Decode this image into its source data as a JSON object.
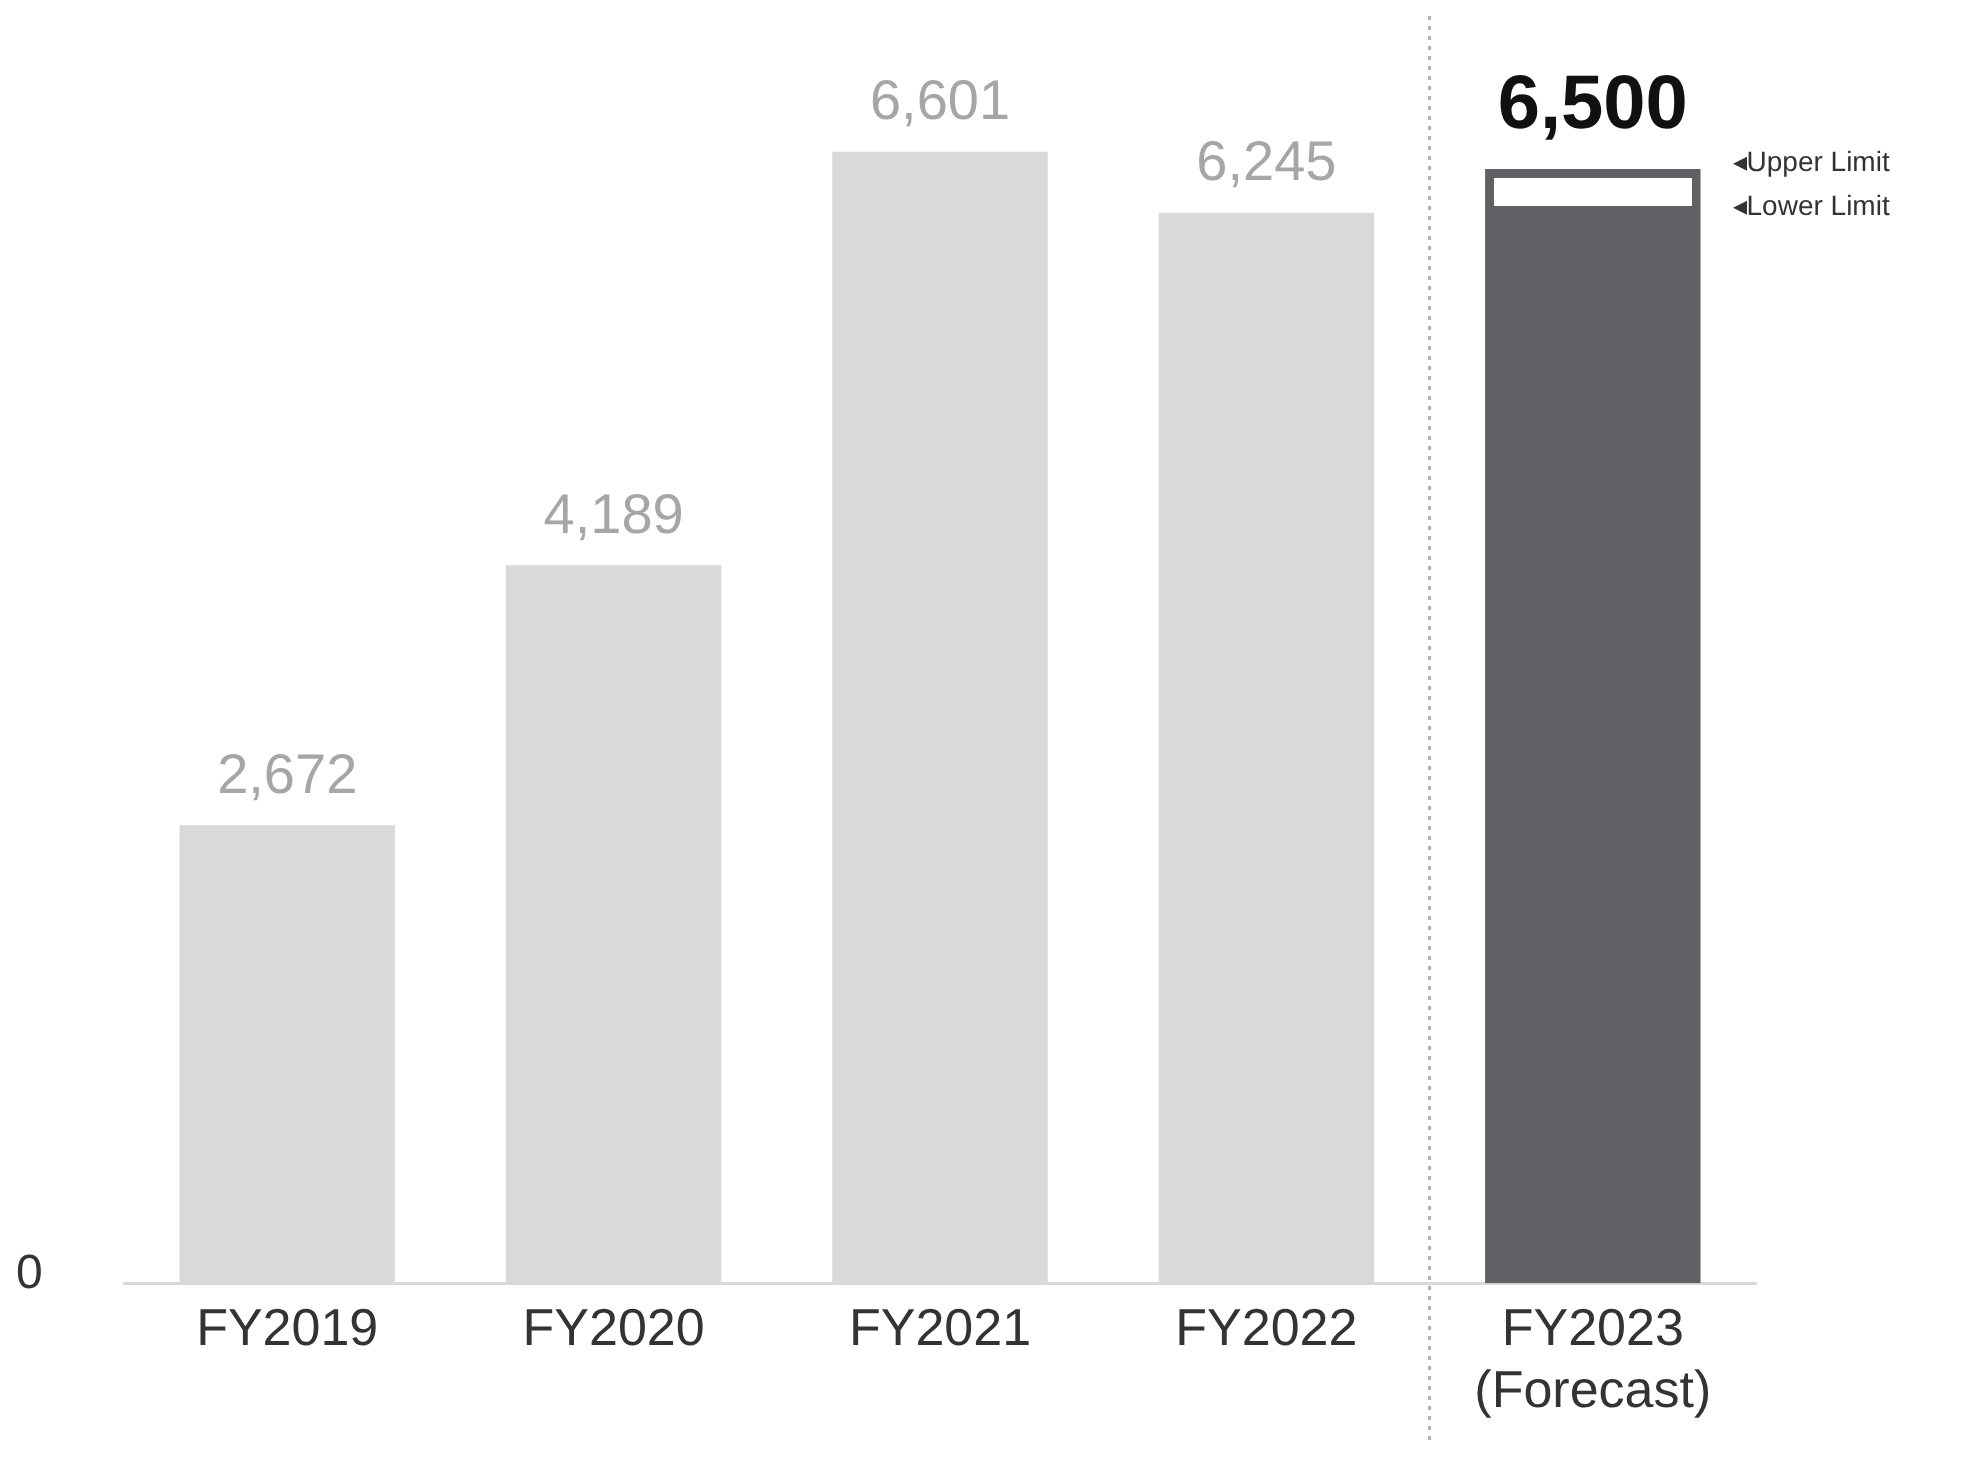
{
  "chart_data": {
    "type": "bar",
    "categories": [
      "FY2019",
      "FY2020",
      "FY2021",
      "FY2022",
      "FY2023 (Forecast)"
    ],
    "values": [
      2672,
      4189,
      6601,
      6245,
      6500
    ],
    "colors": [
      "#d9d9d9",
      "#d9d9d9",
      "#d9d9d9",
      "#d9d9d9",
      "#616165"
    ],
    "value_labels": [
      "2,672",
      "4,189",
      "6,601",
      "6,245",
      "6,500"
    ],
    "grid": false,
    "legend": false,
    "annotations": [
      "0",
      "◂Upper Limit",
      "◂Lower Limit"
    ]
  }
}
